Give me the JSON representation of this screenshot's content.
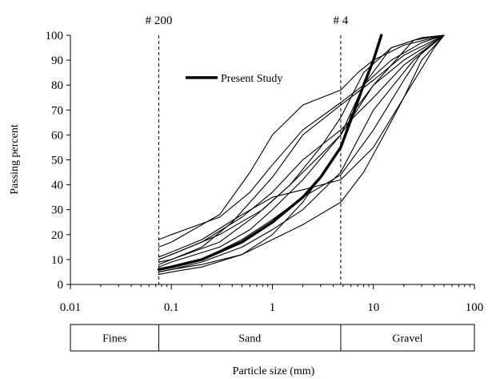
{
  "chart_data": {
    "type": "line",
    "title": "",
    "xlabel": "Particle size (mm)",
    "ylabel": "Passing percent",
    "xscale": "log",
    "xlim": [
      0.01,
      100
    ],
    "ylim": [
      0,
      100
    ],
    "xticks": [
      "0.01",
      "0.1",
      "1",
      "10",
      "100"
    ],
    "yticks": [
      "0",
      "10",
      "20",
      "30",
      "40",
      "50",
      "60",
      "70",
      "80",
      "90",
      "100"
    ],
    "grid": false,
    "legend": {
      "position": "upper-left inside",
      "entries": [
        "Present Study"
      ]
    },
    "sieve_lines": [
      {
        "label": "# 200",
        "x": 0.075
      },
      {
        "label": "# 4",
        "x": 4.75
      }
    ],
    "soil_classes": [
      {
        "label": "Fines",
        "from": 0.01,
        "to": 0.075
      },
      {
        "label": "Sand",
        "from": 0.075,
        "to": 4.75
      },
      {
        "label": "Gravel",
        "from": 4.75,
        "to": 100
      }
    ],
    "series": [
      {
        "name": "Present Study",
        "highlight": true,
        "x": [
          0.075,
          0.1,
          0.2,
          0.5,
          1,
          2,
          3,
          4.75,
          6,
          8,
          10,
          12
        ],
        "y": [
          6,
          7,
          10,
          17,
          25,
          35,
          43,
          55,
          66,
          80,
          90,
          100
        ]
      },
      {
        "highlight": false,
        "x": [
          0.075,
          0.1,
          0.3,
          0.6,
          1,
          2,
          4.75,
          8,
          15,
          30,
          50
        ],
        "y": [
          18,
          20,
          27,
          37,
          48,
          62,
          73,
          80,
          90,
          97,
          100
        ]
      },
      {
        "highlight": false,
        "x": [
          0.075,
          0.1,
          0.2,
          0.5,
          1,
          2,
          4.75,
          10,
          20,
          50
        ],
        "y": [
          10,
          12,
          17,
          27,
          37,
          50,
          62,
          75,
          88,
          100
        ]
      },
      {
        "highlight": false,
        "x": [
          0.075,
          0.1,
          0.2,
          0.4,
          0.7,
          1,
          2,
          4.75,
          10,
          20,
          50
        ],
        "y": [
          8,
          10,
          15,
          25,
          36,
          43,
          60,
          72,
          82,
          92,
          100
        ]
      },
      {
        "highlight": false,
        "x": [
          0.075,
          0.1,
          0.3,
          0.6,
          1,
          2,
          4.75,
          8,
          15,
          30,
          50
        ],
        "y": [
          7,
          9,
          15,
          22,
          30,
          42,
          60,
          80,
          95,
          99,
          100
        ]
      },
      {
        "highlight": false,
        "x": [
          0.075,
          0.1,
          0.2,
          0.5,
          1,
          2,
          4.75,
          10,
          25,
          50
        ],
        "y": [
          5,
          6,
          9,
          15,
          22,
          30,
          45,
          70,
          90,
          100
        ]
      },
      {
        "highlight": false,
        "x": [
          0.075,
          0.1,
          0.3,
          0.6,
          1,
          2,
          4.75,
          7,
          10,
          20,
          50
        ],
        "y": [
          15,
          17,
          28,
          45,
          60,
          72,
          78,
          85,
          90,
          96,
          100
        ]
      },
      {
        "highlight": false,
        "x": [
          0.075,
          0.1,
          0.2,
          0.5,
          1,
          2,
          4.75,
          8,
          12,
          20,
          40,
          50
        ],
        "y": [
          5,
          6,
          8,
          12,
          18,
          24,
          33,
          45,
          58,
          75,
          95,
          100
        ]
      },
      {
        "highlight": false,
        "x": [
          0.075,
          0.1,
          0.2,
          0.5,
          1,
          2,
          4.75,
          6,
          10,
          20,
          50
        ],
        "y": [
          4,
          5,
          7,
          12,
          20,
          33,
          55,
          68,
          80,
          90,
          100
        ]
      },
      {
        "highlight": false,
        "x": [
          0.075,
          0.1,
          0.3,
          0.8,
          1.5,
          3,
          4.75,
          10,
          25,
          50
        ],
        "y": [
          10,
          12,
          20,
          30,
          40,
          52,
          60,
          80,
          98,
          100
        ]
      },
      {
        "highlight": false,
        "x": [
          0.075,
          0.1,
          0.2,
          0.5,
          1,
          2,
          4.75,
          10,
          20,
          30,
          50
        ],
        "y": [
          6,
          7,
          10,
          18,
          26,
          35,
          44,
          62,
          82,
          93,
          100
        ]
      },
      {
        "highlight": false,
        "x": [
          0.075,
          0.1,
          0.3,
          0.7,
          1.5,
          3,
          4.75,
          8,
          15,
          30,
          50
        ],
        "y": [
          9,
          10,
          17,
          28,
          40,
          55,
          67,
          85,
          95,
          99,
          100
        ]
      },
      {
        "highlight": false,
        "x": [
          0.075,
          0.1,
          0.2,
          0.5,
          1,
          2,
          4.75,
          10,
          20,
          30,
          50
        ],
        "y": [
          11,
          13,
          18,
          28,
          35,
          38,
          42,
          55,
          75,
          90,
          100
        ]
      }
    ]
  }
}
